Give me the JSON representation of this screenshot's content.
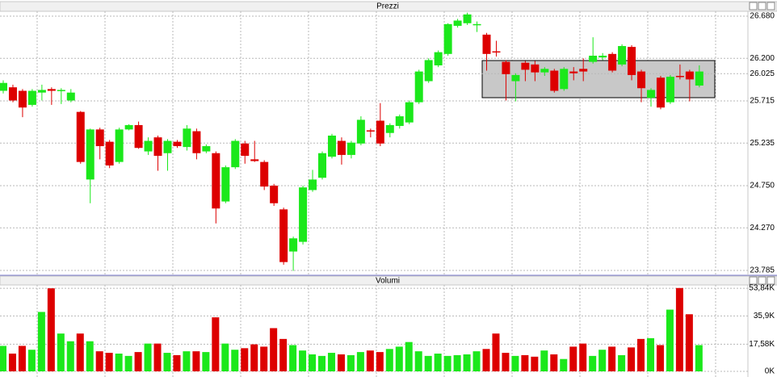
{
  "chart_data": {
    "type": "candlestick",
    "title": "Prezzi",
    "up_color": "#1be81b",
    "down_color": "#dd0000",
    "grid": true,
    "open": [
      25.83,
      25.87,
      25.83,
      25.67,
      25.81,
      25.85,
      25.83,
      25.72,
      25.59,
      24.82,
      25.39,
      25.25,
      25.02,
      25.39,
      25.44,
      25.14,
      25.3,
      25.12,
      25.25,
      25.19,
      25.37,
      25.14,
      25.12,
      24.57,
      24.96,
      25.23,
      25.05,
      25.02,
      24.75,
      24.48,
      24.0,
      24.11,
      24.7,
      24.84,
      25.08,
      25.26,
      25.1,
      25.23,
      25.38,
      25.49,
      25.35,
      25.43,
      25.47,
      25.7,
      25.94,
      26.12,
      26.25,
      26.57,
      26.6,
      26.58,
      26.47,
      26.28,
      26.16,
      25.94,
      26.15,
      26.13,
      26.04,
      26.06,
      25.85,
      26.05,
      26.08,
      26.16,
      26.21,
      26.25,
      26.13,
      26.33,
      26.05,
      25.75,
      25.98,
      25.7,
      26.0,
      26.05,
      25.89
    ],
    "high": [
      25.95,
      25.9,
      25.85,
      25.85,
      25.9,
      25.87,
      25.86,
      25.85,
      25.6,
      25.4,
      25.41,
      25.27,
      25.41,
      25.45,
      25.48,
      25.3,
      25.32,
      25.28,
      25.27,
      25.44,
      25.4,
      25.22,
      25.14,
      24.98,
      25.28,
      25.26,
      25.26,
      25.04,
      24.77,
      24.5,
      24.17,
      24.75,
      24.93,
      25.14,
      25.34,
      25.3,
      25.26,
      25.54,
      25.4,
      25.69,
      25.46,
      25.56,
      25.72,
      26.07,
      26.2,
      26.29,
      26.6,
      26.65,
      26.72,
      26.62,
      26.49,
      26.4,
      26.18,
      26.03,
      26.17,
      26.17,
      26.1,
      26.08,
      26.1,
      26.1,
      26.2,
      26.44,
      26.26,
      26.27,
      26.36,
      26.35,
      26.07,
      25.86,
      26.0,
      26.01,
      26.13,
      26.07,
      26.12
    ],
    "low": [
      25.8,
      25.7,
      25.53,
      25.65,
      25.72,
      25.67,
      25.68,
      25.7,
      25.0,
      24.55,
      25.05,
      24.95,
      25.0,
      25.38,
      25.17,
      25.1,
      24.92,
      24.92,
      25.18,
      25.15,
      25.05,
      25.12,
      24.32,
      24.55,
      24.94,
      25.0,
      25.02,
      24.7,
      24.52,
      23.85,
      23.78,
      24.08,
      24.68,
      24.82,
      25.06,
      24.99,
      25.06,
      25.21,
      25.3,
      25.2,
      25.3,
      25.4,
      25.45,
      25.68,
      25.92,
      26.1,
      26.23,
      26.55,
      26.58,
      26.5,
      26.06,
      26.22,
      25.72,
      25.71,
      25.94,
      25.94,
      26.0,
      25.81,
      25.83,
      25.95,
      25.94,
      26.14,
      26.18,
      26.04,
      26.11,
      25.95,
      25.7,
      25.65,
      25.62,
      25.68,
      25.96,
      25.71,
      25.87
    ],
    "close": [
      25.92,
      25.72,
      25.64,
      25.83,
      25.84,
      25.83,
      25.84,
      25.81,
      25.02,
      25.39,
      25.2,
      24.98,
      25.39,
      25.44,
      25.18,
      25.26,
      25.09,
      25.26,
      25.2,
      25.4,
      25.12,
      25.2,
      24.49,
      24.96,
      25.26,
      25.09,
      25.03,
      24.74,
      24.55,
      23.88,
      24.15,
      24.73,
      24.82,
      25.12,
      25.32,
      25.1,
      25.24,
      25.5,
      25.37,
      25.23,
      25.44,
      25.54,
      25.7,
      26.05,
      26.18,
      26.27,
      26.59,
      26.63,
      26.7,
      26.59,
      26.25,
      26.27,
      26.02,
      26.01,
      26.07,
      26.04,
      26.08,
      25.83,
      26.08,
      26.03,
      26.05,
      26.23,
      26.23,
      26.06,
      26.34,
      26.01,
      25.86,
      25.84,
      25.64,
      25.99,
      25.99,
      25.96,
      26.05
    ],
    "ylim": [
      23.757,
      26.754
    ],
    "yticks": [
      {
        "value": 23.785,
        "label": "23.785"
      },
      {
        "value": 24.27,
        "label": "24.270"
      },
      {
        "value": 24.75,
        "label": "24.750"
      },
      {
        "value": 25.235,
        "label": "25.235"
      },
      {
        "value": 25.715,
        "label": "25.715"
      },
      {
        "value": 26.025,
        "label": "26.025"
      },
      {
        "value": 26.2,
        "label": "26.200"
      },
      {
        "value": 26.68,
        "label": "26.680"
      }
    ],
    "volume": {
      "title": "Volumi",
      "values": [
        16500,
        11500,
        16500,
        14000,
        38500,
        53800,
        24500,
        19500,
        24500,
        19500,
        13000,
        12000,
        11500,
        10000,
        12500,
        18000,
        18000,
        12000,
        10500,
        13000,
        13000,
        12500,
        35000,
        18000,
        14000,
        15000,
        17500,
        16000,
        28000,
        21000,
        17000,
        13500,
        11000,
        10000,
        12000,
        11000,
        10500,
        12500,
        13500,
        12500,
        14500,
        16000,
        19000,
        13000,
        10000,
        11500,
        10000,
        10500,
        11000,
        13000,
        14500,
        24500,
        12000,
        10000,
        10500,
        9500,
        13500,
        11000,
        8000,
        16000,
        18000,
        10000,
        14000,
        16000,
        10500,
        15500,
        21000,
        21500,
        17000,
        40000,
        54000,
        37000,
        17000
      ],
      "ylim": [
        0,
        56500
      ],
      "yticks": [
        {
          "value": 0,
          "label": "0K"
        },
        {
          "value": 17580,
          "label": "17,58K"
        },
        {
          "value": 35900,
          "label": "35,9K"
        },
        {
          "value": 53840,
          "label": "53,84K"
        }
      ]
    }
  }
}
